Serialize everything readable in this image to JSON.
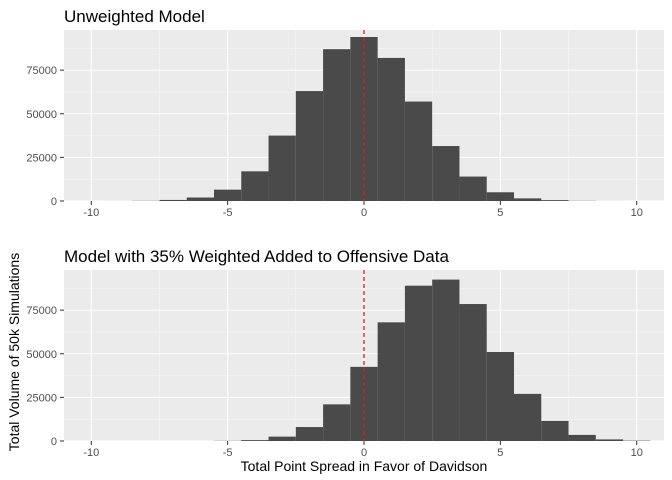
{
  "chart_data": [
    {
      "type": "bar",
      "title": "Unweighted Model",
      "xlabel": "",
      "ylabel": "",
      "xlim": [
        -11,
        11
      ],
      "ylim": [
        0,
        98000
      ],
      "x_ticks": [
        -10,
        -5,
        0,
        5,
        10
      ],
      "y_ticks": [
        0,
        25000,
        50000,
        75000
      ],
      "grid": true,
      "bin_width": 1,
      "bins": [
        {
          "x": -9,
          "value": 10
        },
        {
          "x": -8,
          "value": 100
        },
        {
          "x": -7,
          "value": 600
        },
        {
          "x": -6,
          "value": 2000
        },
        {
          "x": -5,
          "value": 6500
        },
        {
          "x": -4,
          "value": 17000
        },
        {
          "x": -3,
          "value": 37500
        },
        {
          "x": -2,
          "value": 63000
        },
        {
          "x": -1,
          "value": 87000
        },
        {
          "x": 0,
          "value": 94000
        },
        {
          "x": 1,
          "value": 82000
        },
        {
          "x": 2,
          "value": 57000
        },
        {
          "x": 3,
          "value": 31500
        },
        {
          "x": 4,
          "value": 14000
        },
        {
          "x": 5,
          "value": 5000
        },
        {
          "x": 6,
          "value": 1500
        },
        {
          "x": 7,
          "value": 500
        },
        {
          "x": 8,
          "value": 100
        },
        {
          "x": 9,
          "value": 10
        }
      ],
      "reference_line": {
        "x": 0,
        "color": "#e41a1c",
        "style": "dashed"
      },
      "bar_color": "#4a4a4a"
    },
    {
      "type": "bar",
      "title": "Model with 35% Weighted Added to Offensive Data",
      "xlabel": "Total Point Spread in Favor of Davidson",
      "ylabel": "Total Volume of 50k Simulations",
      "xlim": [
        -11,
        11
      ],
      "ylim": [
        0,
        98000
      ],
      "x_ticks": [
        -10,
        -5,
        0,
        5,
        10
      ],
      "y_ticks": [
        0,
        25000,
        50000,
        75000
      ],
      "grid": true,
      "bin_width": 1,
      "bins": [
        {
          "x": -5,
          "value": 100
        },
        {
          "x": -4,
          "value": 500
        },
        {
          "x": -3,
          "value": 2500
        },
        {
          "x": -2,
          "value": 8000
        },
        {
          "x": -1,
          "value": 21000
        },
        {
          "x": 0,
          "value": 42500
        },
        {
          "x": 1,
          "value": 68000
        },
        {
          "x": 2,
          "value": 89000
        },
        {
          "x": 3,
          "value": 92500
        },
        {
          "x": 4,
          "value": 78500
        },
        {
          "x": 5,
          "value": 51000
        },
        {
          "x": 6,
          "value": 27000
        },
        {
          "x": 7,
          "value": 11500
        },
        {
          "x": 8,
          "value": 3500
        },
        {
          "x": 9,
          "value": 900
        },
        {
          "x": 10,
          "value": 200
        }
      ],
      "reference_line": {
        "x": 0,
        "color": "#e41a1c",
        "style": "dashed"
      },
      "bar_color": "#4a4a4a"
    }
  ]
}
